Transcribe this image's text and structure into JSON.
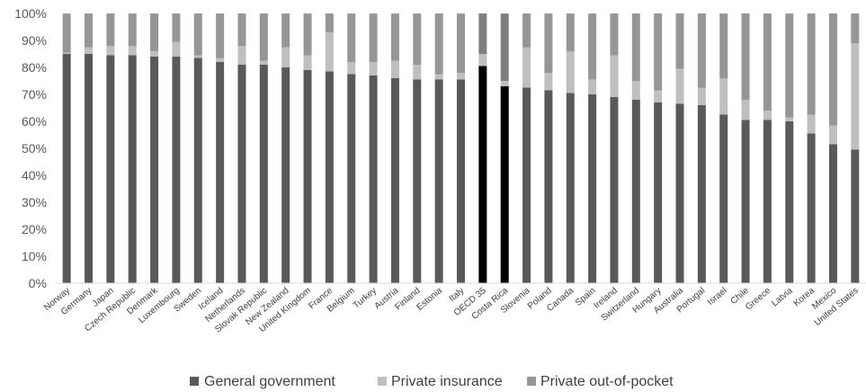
{
  "chart_data": {
    "type": "bar",
    "stacked": true,
    "categories": [
      "Norway",
      "Germany",
      "Japan",
      "Czech Republic",
      "Denmark",
      "Luxembourg",
      "Sweden",
      "Iceland",
      "Netherlands",
      "Slovak Republic",
      "New Zealand",
      "United Kingdom",
      "France",
      "Belgium",
      "Turkey",
      "Austria",
      "Finland",
      "Estonia",
      "Italy",
      "OECD 35",
      "Costa Rica",
      "Slovenia",
      "Poland",
      "Canada",
      "Spain",
      "Ireland",
      "Switzerland",
      "Hungary",
      "Australia",
      "Portugal",
      "Israel",
      "Chile",
      "Greece",
      "Latvia",
      "Korea",
      "Mexico",
      "United States"
    ],
    "series": [
      {
        "name": "General government",
        "values": [
          85,
          85,
          84.5,
          84.5,
          84,
          84,
          83.5,
          82,
          81,
          81,
          80,
          79,
          78.5,
          77.5,
          77,
          76,
          75.5,
          75.5,
          75.5,
          80.5,
          73,
          72.5,
          71.5,
          70.5,
          70,
          69,
          68,
          67,
          66.5,
          66,
          62.5,
          60.5,
          60.5,
          60,
          55.5,
          51.5,
          49.5
        ]
      },
      {
        "name": "Private insurance",
        "values": [
          0.5,
          2.5,
          3.5,
          3.5,
          2,
          5.5,
          1,
          1.5,
          7,
          1.5,
          7.5,
          5.5,
          14.5,
          4.5,
          5,
          6.5,
          5.5,
          2,
          2.5,
          4.5,
          2,
          15,
          6.5,
          15.5,
          5.5,
          15.5,
          7,
          4.5,
          13,
          6.5,
          13.5,
          7.5,
          3.5,
          1.5,
          7,
          7,
          39.5
        ]
      },
      {
        "name": "Private out-of-pocket",
        "values": [
          14.5,
          12.5,
          12,
          12,
          14,
          10.5,
          15.5,
          16.5,
          12,
          17.5,
          12.5,
          15.5,
          7,
          18,
          18,
          17.5,
          19,
          22.5,
          22,
          15,
          25,
          12.5,
          22,
          14,
          24.5,
          15.5,
          25,
          28.5,
          20.5,
          27.5,
          24,
          32,
          36,
          38.5,
          37.5,
          41.5,
          11
        ]
      }
    ],
    "highlight_categories": [
      "OECD 35",
      "Costa Rica"
    ],
    "ylim": [
      0,
      100
    ],
    "yticks": [
      "0%",
      "10%",
      "20%",
      "30%",
      "40%",
      "50%",
      "60%",
      "70%",
      "80%",
      "90%",
      "100%"
    ],
    "legend_position": "bottom",
    "grid": false,
    "colors": {
      "General government": "#595959",
      "Private insurance": "#bfbfbf",
      "Private out-of-pocket": "#969696",
      "highlight_gov": "#000000",
      "highlight_oop": "#7f7f7f"
    }
  }
}
